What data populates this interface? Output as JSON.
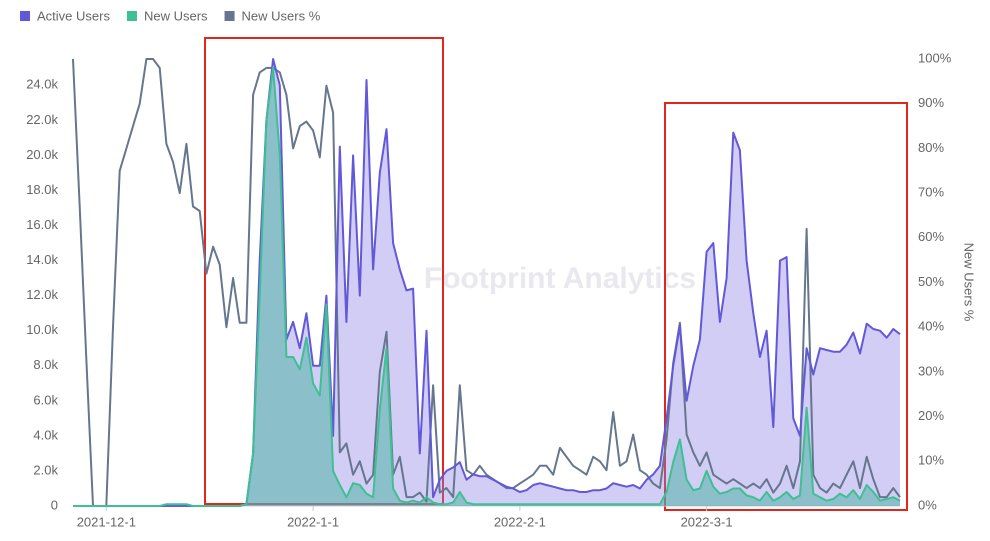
{
  "chart_data": {
    "type": "area",
    "watermark": "Footprint Analytics",
    "y2label": "New Users %",
    "legend": "top-left",
    "x": [
      "2021-11-26",
      "2021-11-27",
      "2021-11-28",
      "2021-11-29",
      "2021-11-30",
      "2021-12-1",
      "2021-12-2",
      "2021-12-3",
      "2021-12-4",
      "2021-12-5",
      "2021-12-6",
      "2021-12-7",
      "2021-12-8",
      "2021-12-9",
      "2021-12-10",
      "2021-12-11",
      "2021-12-12",
      "2021-12-13",
      "2021-12-14",
      "2021-12-15",
      "2021-12-16",
      "2021-12-17",
      "2021-12-18",
      "2021-12-19",
      "2021-12-20",
      "2021-12-21",
      "2021-12-22",
      "2021-12-23",
      "2021-12-24",
      "2021-12-25",
      "2021-12-26",
      "2021-12-27",
      "2021-12-28",
      "2021-12-29",
      "2021-12-30",
      "2021-12-31",
      "2022-1-1",
      "2022-1-2",
      "2022-1-3",
      "2022-1-4",
      "2022-1-5",
      "2022-1-6",
      "2022-1-7",
      "2022-1-8",
      "2022-1-9",
      "2022-1-10",
      "2022-1-11",
      "2022-1-12",
      "2022-1-13",
      "2022-1-14",
      "2022-1-15",
      "2022-1-16",
      "2022-1-17",
      "2022-1-18",
      "2022-1-19",
      "2022-1-20",
      "2022-1-21",
      "2022-1-22",
      "2022-1-23",
      "2022-1-24",
      "2022-1-25",
      "2022-1-26",
      "2022-1-27",
      "2022-1-28",
      "2022-1-29",
      "2022-1-30",
      "2022-1-31",
      "2022-2-1",
      "2022-2-2",
      "2022-2-3",
      "2022-2-4",
      "2022-2-5",
      "2022-2-6",
      "2022-2-7",
      "2022-2-8",
      "2022-2-9",
      "2022-2-10",
      "2022-2-11",
      "2022-2-12",
      "2022-2-13",
      "2022-2-14",
      "2022-2-15",
      "2022-2-16",
      "2022-2-17",
      "2022-2-18",
      "2022-2-19",
      "2022-2-20",
      "2022-2-21",
      "2022-2-22",
      "2022-2-23",
      "2022-2-24",
      "2022-2-25",
      "2022-2-26",
      "2022-2-27",
      "2022-2-28",
      "2022-3-1",
      "2022-3-2",
      "2022-3-3",
      "2022-3-4",
      "2022-3-5",
      "2022-3-6",
      "2022-3-7",
      "2022-3-8",
      "2022-3-9",
      "2022-3-10",
      "2022-3-11",
      "2022-3-12",
      "2022-3-13",
      "2022-3-14",
      "2022-3-15",
      "2022-3-16",
      "2022-3-17",
      "2022-3-18",
      "2022-3-19",
      "2022-3-20",
      "2022-3-21",
      "2022-3-22",
      "2022-3-23",
      "2022-3-24",
      "2022-3-25",
      "2022-3-26",
      "2022-3-27",
      "2022-3-28",
      "2022-3-29",
      "2022-3-30"
    ],
    "ylim": [
      0,
      25500
    ],
    "yticks": [
      0,
      {
        "value": 2000,
        "label": "2.0k"
      },
      {
        "value": 4000,
        "label": "4.0k"
      },
      {
        "value": 6000,
        "label": "6.0k"
      },
      {
        "value": 8000,
        "label": "8.0k"
      },
      {
        "value": 10000,
        "label": "10.0k"
      },
      {
        "value": 12000,
        "label": "12.0k"
      },
      {
        "value": 14000,
        "label": "14.0k"
      },
      {
        "value": 16000,
        "label": "16.0k"
      },
      {
        "value": 18000,
        "label": "18.0k"
      },
      {
        "value": 20000,
        "label": "20.0k"
      },
      {
        "value": 22000,
        "label": "22.0k"
      },
      {
        "value": 24000,
        "label": "24.0k"
      }
    ],
    "y2lim": [
      0,
      100
    ],
    "y2ticks": [
      {
        "value": 0,
        "label": "0%"
      },
      {
        "value": 10,
        "label": "10%"
      },
      {
        "value": 20,
        "label": "20%"
      },
      {
        "value": 30,
        "label": "30%"
      },
      {
        "value": 40,
        "label": "40%"
      },
      {
        "value": 50,
        "label": "50%"
      },
      {
        "value": 60,
        "label": "60%"
      },
      {
        "value": 70,
        "label": "70%"
      },
      {
        "value": 80,
        "label": "80%"
      },
      {
        "value": 90,
        "label": "90%"
      },
      {
        "value": 100,
        "label": "100%"
      }
    ],
    "series": [
      {
        "name": "Active Users",
        "color": "#6258d8",
        "fill": "rgba(140,130,230,0.4)",
        "values": [
          0,
          0,
          0,
          0,
          0,
          0,
          0,
          0,
          0,
          0,
          0,
          0,
          0,
          0,
          0,
          0,
          0,
          0,
          0,
          0,
          0,
          0,
          0,
          0,
          0,
          0,
          100,
          3000,
          14000,
          22000,
          25500,
          24000,
          9500,
          10500,
          9000,
          11000,
          8000,
          8000,
          12000,
          4000,
          20500,
          10500,
          20000,
          12000,
          24300,
          13500,
          19000,
          21500,
          15000,
          13500,
          12300,
          12400,
          3000,
          10000,
          500,
          1500,
          2000,
          2200,
          2500,
          1500,
          1800,
          1700,
          1700,
          1500,
          1300,
          1100,
          1000,
          800,
          900,
          1200,
          1300,
          1200,
          1100,
          1000,
          900,
          900,
          800,
          800,
          900,
          900,
          1000,
          1300,
          1200,
          1100,
          1200,
          1000,
          1500,
          1800,
          2300,
          5000,
          8000,
          10300,
          6000,
          8000,
          9500,
          14500,
          15000,
          10500,
          13000,
          21300,
          20300,
          14000,
          11000,
          8500,
          10000,
          4500,
          14000,
          14200,
          5000,
          4000,
          9000,
          7500,
          9000,
          8900,
          8800,
          8800,
          9200,
          9900,
          8700,
          10400,
          10100,
          10000,
          9600,
          10100,
          9800
        ]
      },
      {
        "name": "New Users",
        "color": "#3fbf94",
        "fill": "rgba(70,180,160,0.5)",
        "values": [
          0,
          0,
          0,
          0,
          0,
          0,
          0,
          0,
          0,
          0,
          0,
          0,
          0,
          0,
          100,
          100,
          100,
          100,
          0,
          0,
          0,
          0,
          0,
          0,
          0,
          0,
          100,
          3000,
          12000,
          22000,
          25000,
          20000,
          8500,
          8500,
          7800,
          9600,
          7000,
          6300,
          11500,
          2000,
          1200,
          500,
          1300,
          1200,
          700,
          500,
          5500,
          9000,
          1000,
          300,
          200,
          300,
          200,
          500,
          200,
          100,
          100,
          200,
          800,
          200,
          100,
          100,
          100,
          100,
          100,
          100,
          100,
          100,
          100,
          100,
          100,
          100,
          100,
          100,
          100,
          100,
          100,
          100,
          100,
          100,
          100,
          100,
          100,
          100,
          100,
          100,
          100,
          100,
          100,
          800,
          2500,
          3800,
          1500,
          900,
          1000,
          2000,
          1100,
          700,
          800,
          1000,
          1000,
          600,
          500,
          300,
          800,
          300,
          500,
          800,
          400,
          600,
          5600,
          700,
          500,
          300,
          400,
          700,
          500,
          900,
          400,
          1200,
          800,
          300,
          400,
          500,
          300
        ]
      },
      {
        "name": "New Users %",
        "color": "#66768e",
        "axis": "y2",
        "values": [
          100,
          67,
          33,
          0,
          0,
          0,
          40,
          75,
          80,
          85,
          90,
          100,
          100,
          98,
          81,
          77,
          70,
          81,
          67,
          66,
          52,
          58,
          54,
          40,
          51,
          41,
          41,
          92,
          97,
          98,
          98,
          97,
          92,
          80,
          85,
          86,
          84,
          78,
          94,
          88,
          12,
          14,
          7,
          10,
          5,
          7,
          30,
          39,
          7,
          11,
          2,
          2,
          3,
          1,
          27,
          3,
          4,
          2,
          27,
          8,
          7,
          9,
          7,
          6,
          5,
          4,
          4,
          5,
          6,
          7,
          9,
          9,
          7,
          13,
          11,
          9,
          8,
          7,
          11,
          10,
          8,
          21,
          9,
          10,
          16,
          8,
          7,
          5,
          4,
          15,
          32,
          41,
          16,
          12,
          9,
          12,
          7,
          6,
          5,
          6,
          5,
          4,
          5,
          4,
          6,
          3,
          5,
          9,
          4,
          10,
          62,
          7,
          4,
          3,
          5,
          4,
          7,
          10,
          4,
          11,
          6,
          2,
          2,
          4,
          2
        ]
      }
    ]
  }
}
